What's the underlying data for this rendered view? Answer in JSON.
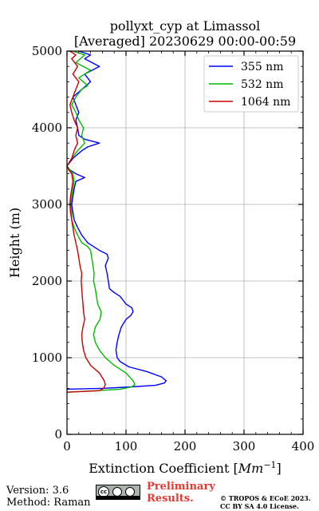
{
  "chart_data": {
    "type": "line",
    "title": "pollyxt_cyp at Limassol",
    "subtitle": "[Averaged] 20230629 00:00-00:59",
    "xlabel": "Extinction Coefficient [Mm⁻¹]",
    "ylabel": "Height (m)",
    "xlim": [
      0,
      400
    ],
    "ylim": [
      0,
      5000
    ],
    "xticks": [
      0,
      100,
      200,
      300,
      400
    ],
    "yticks": [
      0,
      1000,
      2000,
      3000,
      4000,
      5000
    ],
    "grid": true,
    "legend_position": "top-right",
    "series": [
      {
        "name": "355 nm",
        "color": "#0000ff",
        "points": [
          [
            0,
            590
          ],
          [
            60,
            600
          ],
          [
            110,
            620
          ],
          [
            150,
            640
          ],
          [
            165,
            670
          ],
          [
            168,
            700
          ],
          [
            160,
            750
          ],
          [
            135,
            820
          ],
          [
            105,
            880
          ],
          [
            90,
            950
          ],
          [
            85,
            1000
          ],
          [
            83,
            1100
          ],
          [
            85,
            1200
          ],
          [
            88,
            1300
          ],
          [
            92,
            1400
          ],
          [
            100,
            1500
          ],
          [
            108,
            1550
          ],
          [
            112,
            1600
          ],
          [
            110,
            1650
          ],
          [
            100,
            1700
          ],
          [
            95,
            1750
          ],
          [
            90,
            1800
          ],
          [
            80,
            1850
          ],
          [
            72,
            1900
          ],
          [
            70,
            2000
          ],
          [
            68,
            2100
          ],
          [
            65,
            2200
          ],
          [
            70,
            2300
          ],
          [
            68,
            2350
          ],
          [
            55,
            2400
          ],
          [
            45,
            2450
          ],
          [
            35,
            2500
          ],
          [
            25,
            2600
          ],
          [
            18,
            2700
          ],
          [
            12,
            2800
          ],
          [
            10,
            2900
          ],
          [
            8,
            3000
          ],
          [
            10,
            3100
          ],
          [
            12,
            3200
          ],
          [
            15,
            3300
          ],
          [
            30,
            3350
          ],
          [
            15,
            3400
          ],
          [
            5,
            3450
          ],
          [
            0,
            3500
          ],
          [
            10,
            3600
          ],
          [
            25,
            3700
          ],
          [
            35,
            3750
          ],
          [
            55,
            3800
          ],
          [
            30,
            3850
          ],
          [
            20,
            3900
          ],
          [
            18,
            4000
          ],
          [
            15,
            4100
          ],
          [
            20,
            4200
          ],
          [
            15,
            4300
          ],
          [
            10,
            4400
          ],
          [
            25,
            4500
          ],
          [
            40,
            4600
          ],
          [
            30,
            4700
          ],
          [
            55,
            4800
          ],
          [
            30,
            4900
          ],
          [
            40,
            4950
          ],
          [
            20,
            5000
          ]
        ]
      },
      {
        "name": "532 nm",
        "color": "#00bb00",
        "points": [
          [
            0,
            550
          ],
          [
            50,
            570
          ],
          [
            90,
            590
          ],
          [
            110,
            620
          ],
          [
            115,
            650
          ],
          [
            112,
            700
          ],
          [
            100,
            800
          ],
          [
            80,
            900
          ],
          [
            65,
            1000
          ],
          [
            55,
            1100
          ],
          [
            48,
            1200
          ],
          [
            45,
            1300
          ],
          [
            48,
            1400
          ],
          [
            52,
            1450
          ],
          [
            56,
            1500
          ],
          [
            58,
            1600
          ],
          [
            52,
            1700
          ],
          [
            50,
            1800
          ],
          [
            48,
            1900
          ],
          [
            45,
            2000
          ],
          [
            46,
            2100
          ],
          [
            44,
            2200
          ],
          [
            42,
            2300
          ],
          [
            40,
            2400
          ],
          [
            35,
            2450
          ],
          [
            25,
            2500
          ],
          [
            18,
            2600
          ],
          [
            12,
            2700
          ],
          [
            8,
            2800
          ],
          [
            8,
            2900
          ],
          [
            6,
            3000
          ],
          [
            8,
            3100
          ],
          [
            10,
            3200
          ],
          [
            12,
            3300
          ],
          [
            10,
            3400
          ],
          [
            5,
            3450
          ],
          [
            0,
            3500
          ],
          [
            8,
            3600
          ],
          [
            18,
            3700
          ],
          [
            30,
            3800
          ],
          [
            25,
            3900
          ],
          [
            28,
            4000
          ],
          [
            20,
            4100
          ],
          [
            15,
            4200
          ],
          [
            8,
            4300
          ],
          [
            15,
            4400
          ],
          [
            25,
            4500
          ],
          [
            35,
            4550
          ],
          [
            20,
            4650
          ],
          [
            40,
            4750
          ],
          [
            15,
            4850
          ],
          [
            30,
            4950
          ],
          [
            10,
            5000
          ]
        ]
      },
      {
        "name": "1064 nm",
        "color": "#cc0000",
        "points": [
          [
            0,
            550
          ],
          [
            30,
            560
          ],
          [
            55,
            570
          ],
          [
            62,
            600
          ],
          [
            65,
            650
          ],
          [
            63,
            700
          ],
          [
            55,
            800
          ],
          [
            40,
            900
          ],
          [
            32,
            1000
          ],
          [
            28,
            1100
          ],
          [
            26,
            1200
          ],
          [
            25,
            1300
          ],
          [
            27,
            1400
          ],
          [
            30,
            1500
          ],
          [
            28,
            1600
          ],
          [
            27,
            1700
          ],
          [
            26,
            1800
          ],
          [
            25,
            1900
          ],
          [
            24,
            2000
          ],
          [
            25,
            2100
          ],
          [
            22,
            2200
          ],
          [
            20,
            2300
          ],
          [
            18,
            2400
          ],
          [
            15,
            2500
          ],
          [
            12,
            2600
          ],
          [
            10,
            2700
          ],
          [
            8,
            2800
          ],
          [
            6,
            2900
          ],
          [
            5,
            3000
          ],
          [
            6,
            3100
          ],
          [
            8,
            3200
          ],
          [
            10,
            3300
          ],
          [
            8,
            3400
          ],
          [
            3,
            3450
          ],
          [
            0,
            3500
          ],
          [
            8,
            3600
          ],
          [
            12,
            3700
          ],
          [
            18,
            3800
          ],
          [
            15,
            3900
          ],
          [
            18,
            4000
          ],
          [
            12,
            4100
          ],
          [
            8,
            4200
          ],
          [
            5,
            4300
          ],
          [
            10,
            4400
          ],
          [
            15,
            4500
          ],
          [
            20,
            4600
          ],
          [
            10,
            4700
          ],
          [
            18,
            4800
          ],
          [
            8,
            4900
          ],
          [
            15,
            4950
          ],
          [
            5,
            5000
          ]
        ]
      }
    ]
  },
  "footer": {
    "version": "Version: 3.6",
    "method": "Method: Raman",
    "preliminary": "Preliminary Results.",
    "copyright_line1": "© TROPOS & ECoE 2023.",
    "copyright_line2": "CC BY SA 4.0 License.",
    "license_icon": "cc-by-sa-icon",
    "cc_text": "cc"
  }
}
